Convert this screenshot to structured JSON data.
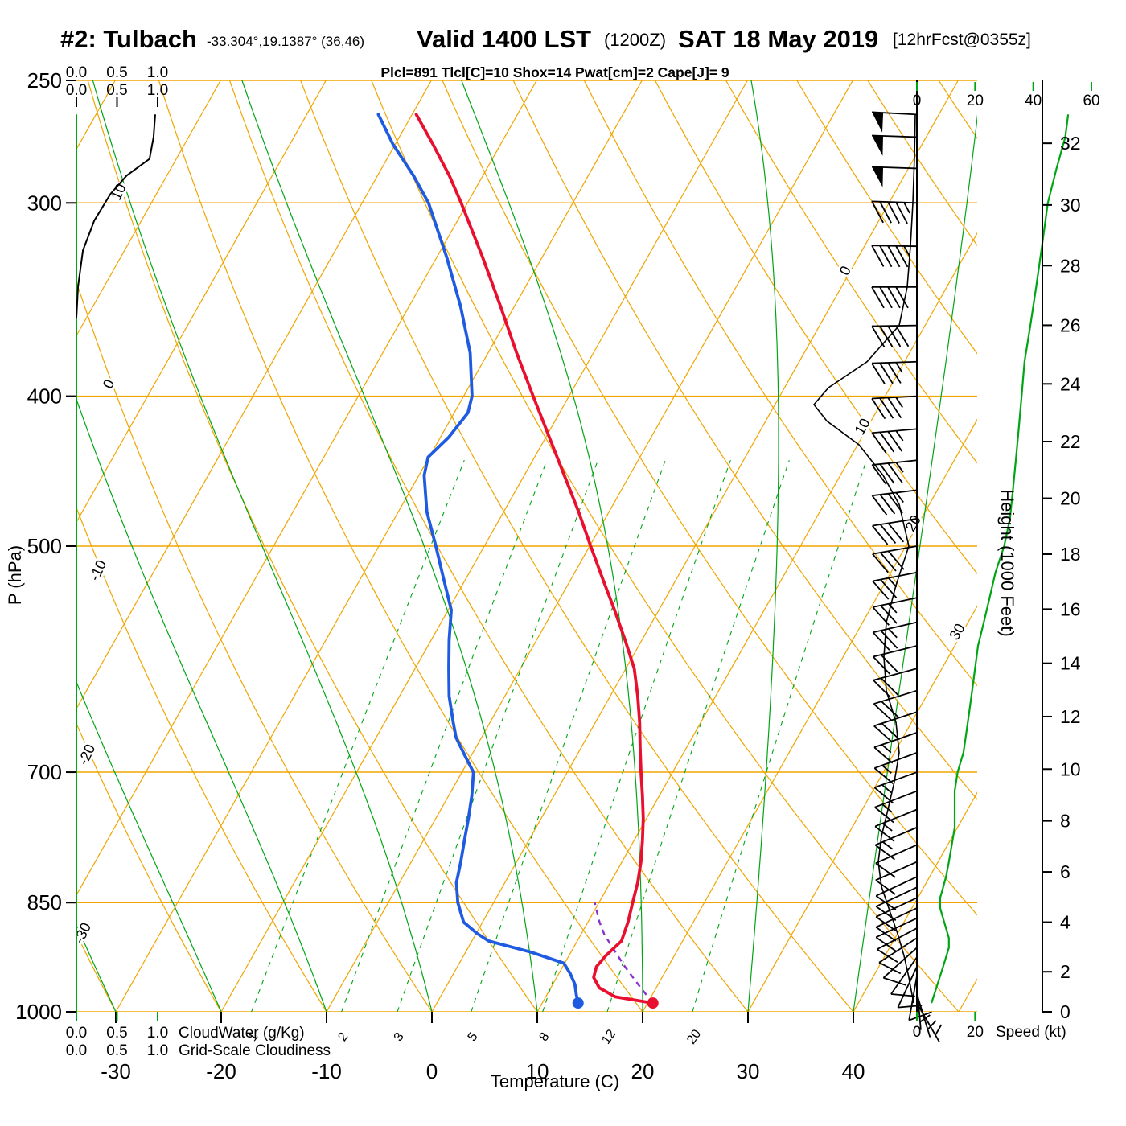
{
  "colors": {
    "orange": "#f0a500",
    "green": "#00a514",
    "red": "#e8102e",
    "blue": "#1f5be0",
    "purple": "#8833cc",
    "indices": "#c00058",
    "black": "#000000"
  },
  "header": {
    "station": "#2: Tulbach",
    "coords": "-33.304°,19.1387° (36,46)",
    "valid": "Valid 1400 LST",
    "zulu": "(1200Z)",
    "date": "SAT 18 May 2019",
    "fcst": "[12hrFcst@0355z]",
    "indices": "Plcl=891 Tlcl[C]=10 Shox=14 Pwat[cm]=2 Cape[J]= 9"
  },
  "axes": {
    "pressure": {
      "label": "P (hPa)",
      "ticks": [
        250,
        300,
        400,
        500,
        700,
        850,
        1000
      ]
    },
    "temperature": {
      "label": "Temperature (C)",
      "ticks": [
        -30,
        -20,
        -10,
        0,
        10,
        20,
        30,
        40
      ]
    },
    "height": {
      "label": "Height (1000 Feet)",
      "ticks": [
        0,
        2,
        4,
        6,
        8,
        10,
        12,
        14,
        16,
        18,
        20,
        22,
        24,
        26,
        28,
        30,
        32
      ]
    },
    "speed": {
      "label": "Speed (kt)",
      "top_ticks": [
        0,
        20,
        40,
        60
      ],
      "bottom_ticks": [
        0,
        20
      ]
    },
    "cloudwater": {
      "label": "CloudWater (g/Kg)",
      "ticks": [
        "0.0",
        "0.5",
        "1.0"
      ]
    },
    "cloudiness": {
      "label": "Grid-Scale Cloudiness",
      "ticks": [
        "0.0",
        "0.5",
        "1.0"
      ]
    }
  },
  "grid": {
    "isotherms": {
      "min": -110,
      "max": 50,
      "step": 10
    },
    "dry_adiabats": {
      "min": -30,
      "max": 130,
      "step": 10
    },
    "moist_adiabats": [
      -30,
      -20,
      -10,
      0,
      10,
      20,
      30,
      40
    ],
    "mixing_ratios": [
      1,
      2,
      3,
      5,
      8,
      12,
      20
    ],
    "isotherm_labels": [
      {
        "t": 0,
        "p": 333
      },
      {
        "t": 10,
        "p": 420
      },
      {
        "t": 20,
        "p": 485
      },
      {
        "t": 30,
        "p": 570
      }
    ],
    "adiabat_labels": [
      {
        "theta": 10,
        "p": 296
      },
      {
        "theta": 0,
        "p": 394
      },
      {
        "theta": -10,
        "p": 520
      },
      {
        "theta": -20,
        "p": 684
      },
      {
        "theta": -30,
        "p": 892
      }
    ]
  },
  "chart_data": {
    "type": "skewt-log-p-sounding",
    "title": "#2: Tulbach Valid 1400 LST (1200Z) SAT 18 May 2019",
    "surface": {
      "pressure": 987,
      "temperature": 20.5,
      "dewpoint": 13.4
    },
    "temperature_profile": [
      [
        987,
        20.5
      ],
      [
        978,
        16.6
      ],
      [
        965,
        14.6
      ],
      [
        950,
        13.5
      ],
      [
        935,
        13.2
      ],
      [
        920,
        13.5
      ],
      [
        900,
        14.2
      ],
      [
        875,
        13.8
      ],
      [
        850,
        13.2
      ],
      [
        825,
        12.6
      ],
      [
        800,
        11.8
      ],
      [
        775,
        10.8
      ],
      [
        750,
        9.7
      ],
      [
        725,
        8.4
      ],
      [
        700,
        7.0
      ],
      [
        675,
        5.6
      ],
      [
        650,
        4.2
      ],
      [
        625,
        2.6
      ],
      [
        600,
        0.8
      ],
      [
        575,
        -1.6
      ],
      [
        550,
        -4.2
      ],
      [
        525,
        -7.0
      ],
      [
        500,
        -9.9
      ],
      [
        475,
        -12.9
      ],
      [
        450,
        -16.2
      ],
      [
        425,
        -19.7
      ],
      [
        400,
        -23.4
      ],
      [
        375,
        -27.3
      ],
      [
        350,
        -31.3
      ],
      [
        325,
        -35.7
      ],
      [
        300,
        -40.6
      ],
      [
        288,
        -43.2
      ],
      [
        275,
        -46.4
      ],
      [
        263,
        -49.6
      ]
    ],
    "dewpoint_profile": [
      [
        987,
        13.4
      ],
      [
        975,
        12.8
      ],
      [
        960,
        12.1
      ],
      [
        945,
        11.1
      ],
      [
        930,
        9.9
      ],
      [
        915,
        6.2
      ],
      [
        900,
        1.6
      ],
      [
        890,
        0.1
      ],
      [
        875,
        -1.8
      ],
      [
        850,
        -3.4
      ],
      [
        825,
        -4.6
      ],
      [
        800,
        -5.3
      ],
      [
        775,
        -6.1
      ],
      [
        750,
        -6.9
      ],
      [
        725,
        -7.8
      ],
      [
        700,
        -8.9
      ],
      [
        685,
        -10.4
      ],
      [
        665,
        -12.4
      ],
      [
        650,
        -13.5
      ],
      [
        625,
        -15.3
      ],
      [
        600,
        -16.8
      ],
      [
        575,
        -18.3
      ],
      [
        550,
        -19.7
      ],
      [
        525,
        -22.1
      ],
      [
        500,
        -24.6
      ],
      [
        475,
        -27.3
      ],
      [
        450,
        -29.5
      ],
      [
        438,
        -30.1
      ],
      [
        425,
        -29.2
      ],
      [
        410,
        -28.7
      ],
      [
        400,
        -29.2
      ],
      [
        375,
        -31.7
      ],
      [
        350,
        -35.1
      ],
      [
        325,
        -39.1
      ],
      [
        300,
        -43.7
      ],
      [
        288,
        -46.6
      ],
      [
        275,
        -50.2
      ],
      [
        263,
        -53.2
      ]
    ],
    "parcel_path": [
      [
        987,
        20.5
      ],
      [
        960,
        18.1
      ],
      [
        935,
        15.9
      ],
      [
        910,
        13.8
      ],
      [
        891,
        12.2
      ],
      [
        875,
        11.1
      ],
      [
        860,
        10.2
      ],
      [
        850,
        9.6
      ]
    ],
    "cloudwater_profile": [
      [
        1000,
        0
      ],
      [
        263,
        0
      ]
    ],
    "cloudiness_profile": [
      [
        356,
        0
      ],
      [
        340,
        0.02
      ],
      [
        322,
        0.08
      ],
      [
        308,
        0.22
      ],
      [
        296,
        0.42
      ],
      [
        288,
        0.62
      ],
      [
        281,
        0.9
      ],
      [
        272,
        0.95
      ],
      [
        263,
        0.97
      ]
    ],
    "wind_speed_profile": [
      [
        987,
        5
      ],
      [
        974,
        6
      ],
      [
        961,
        7
      ],
      [
        948,
        8
      ],
      [
        935,
        9
      ],
      [
        922,
        10
      ],
      [
        909,
        11
      ],
      [
        896,
        11
      ],
      [
        883,
        10
      ],
      [
        870,
        9
      ],
      [
        857,
        8
      ],
      [
        844,
        8
      ],
      [
        831,
        9
      ],
      [
        818,
        10
      ],
      [
        800,
        11
      ],
      [
        780,
        12
      ],
      [
        760,
        13
      ],
      [
        740,
        13
      ],
      [
        720,
        13
      ],
      [
        700,
        14
      ],
      [
        680,
        16
      ],
      [
        660,
        17
      ],
      [
        640,
        18
      ],
      [
        620,
        19
      ],
      [
        600,
        20
      ],
      [
        580,
        21
      ],
      [
        560,
        23
      ],
      [
        540,
        25
      ],
      [
        520,
        27
      ],
      [
        500,
        30
      ],
      [
        480,
        32
      ],
      [
        460,
        33
      ],
      [
        440,
        34
      ],
      [
        420,
        35
      ],
      [
        400,
        36
      ],
      [
        380,
        37
      ],
      [
        360,
        39
      ],
      [
        340,
        41
      ],
      [
        320,
        43
      ],
      [
        300,
        45
      ],
      [
        285,
        48
      ],
      [
        272,
        51
      ],
      [
        263,
        52
      ]
    ],
    "wind_barbs": [
      [
        987,
        150,
        5
      ],
      [
        974,
        163,
        6
      ],
      [
        961,
        175,
        7
      ],
      [
        948,
        190,
        8
      ],
      [
        935,
        205,
        9
      ],
      [
        922,
        215,
        10
      ],
      [
        909,
        228,
        11
      ],
      [
        896,
        237,
        11
      ],
      [
        883,
        242,
        10
      ],
      [
        870,
        245,
        9
      ],
      [
        857,
        245,
        8
      ],
      [
        844,
        245,
        8
      ],
      [
        831,
        245,
        9
      ],
      [
        818,
        245,
        10
      ],
      [
        800,
        246,
        11
      ],
      [
        780,
        246,
        12
      ],
      [
        760,
        247,
        13
      ],
      [
        740,
        248,
        13
      ],
      [
        720,
        249,
        13
      ],
      [
        700,
        250,
        14
      ],
      [
        680,
        250,
        16
      ],
      [
        660,
        251,
        17
      ],
      [
        640,
        252,
        18
      ],
      [
        620,
        253,
        19
      ],
      [
        600,
        255,
        20
      ],
      [
        580,
        256,
        21
      ],
      [
        560,
        257,
        23
      ],
      [
        540,
        258,
        25
      ],
      [
        520,
        259,
        27
      ],
      [
        500,
        260,
        30
      ],
      [
        480,
        261,
        32
      ],
      [
        460,
        263,
        33
      ],
      [
        440,
        264,
        34
      ],
      [
        420,
        265,
        35
      ],
      [
        400,
        267,
        36
      ],
      [
        380,
        268,
        37
      ],
      [
        360,
        269,
        39
      ],
      [
        340,
        270,
        41
      ],
      [
        320,
        271,
        43
      ],
      [
        300,
        272,
        45
      ],
      [
        285,
        272,
        48
      ],
      [
        272,
        272,
        51
      ],
      [
        263,
        273,
        52
      ]
    ],
    "aux_black_profile": [
      [
        263,
        -2
      ],
      [
        280,
        -3
      ],
      [
        300,
        -5
      ],
      [
        320,
        -8
      ],
      [
        340,
        -12
      ],
      [
        360,
        -22
      ],
      [
        380,
        -62
      ],
      [
        395,
        -110
      ],
      [
        405,
        -128
      ],
      [
        415,
        -112
      ],
      [
        430,
        -72
      ],
      [
        450,
        -42
      ],
      [
        470,
        -22
      ],
      [
        500,
        -10
      ],
      [
        530,
        -26
      ],
      [
        560,
        -38
      ],
      [
        590,
        -41
      ],
      [
        620,
        -38
      ],
      [
        650,
        -26
      ],
      [
        680,
        -22
      ],
      [
        710,
        -28
      ],
      [
        740,
        -36
      ],
      [
        770,
        -44
      ],
      [
        800,
        -48
      ],
      [
        830,
        -44
      ],
      [
        860,
        -34
      ],
      [
        890,
        -24
      ],
      [
        920,
        -16
      ],
      [
        950,
        -10
      ],
      [
        975,
        -6
      ],
      [
        987,
        -4
      ]
    ]
  }
}
